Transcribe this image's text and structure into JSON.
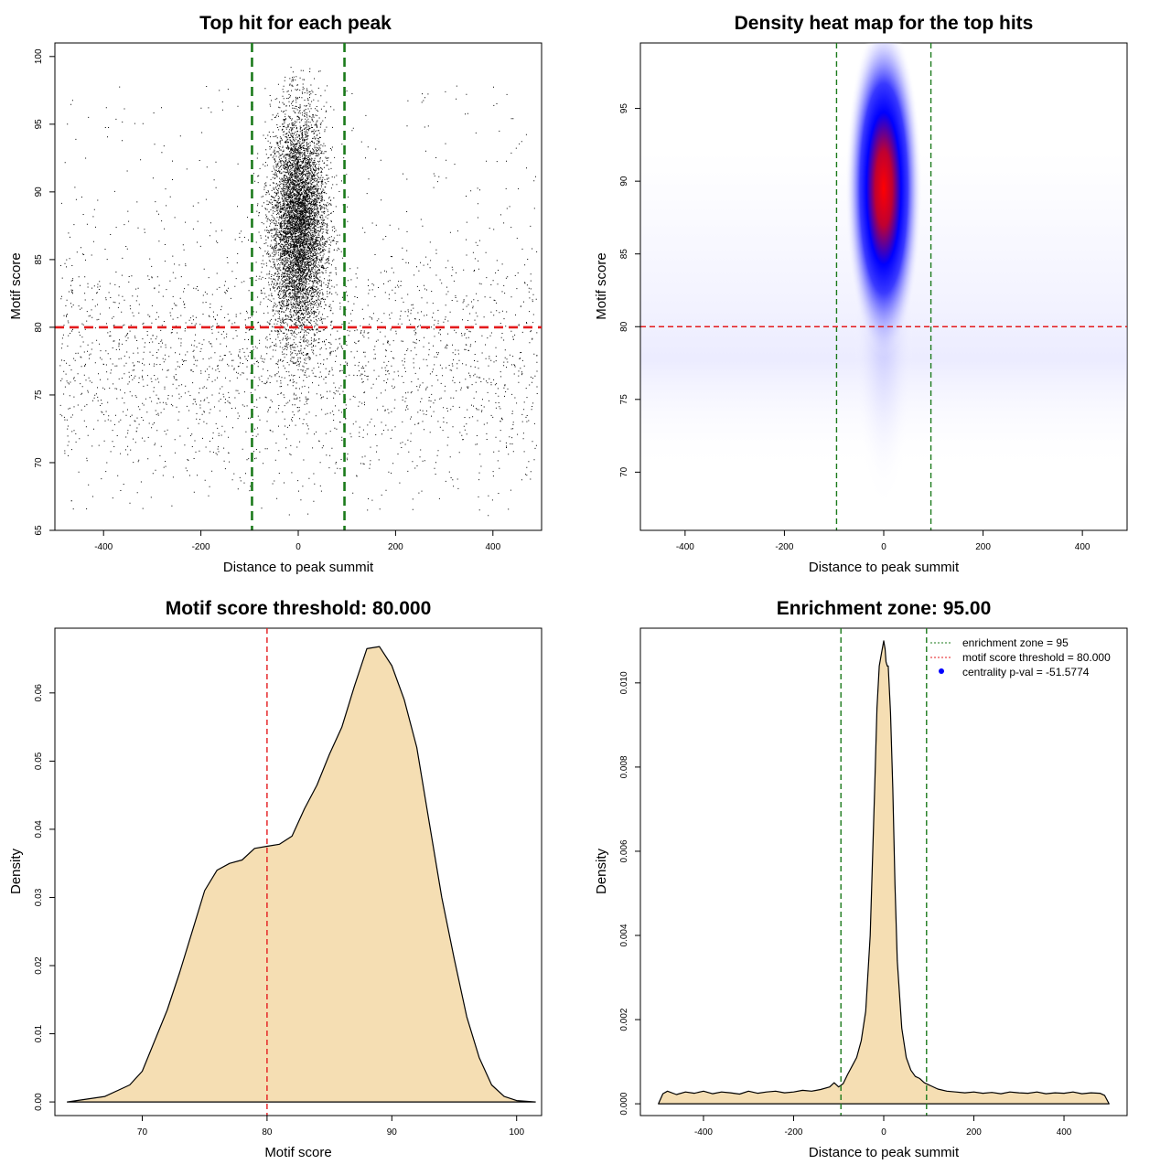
{
  "colors": {
    "threshold_line": "#e41a1c",
    "zone_line": "#1b7a1b",
    "density_fill": "#f5deb3",
    "point": "#000000",
    "heat_low": "#ffffff",
    "heat_mid": "#0000ff",
    "heat_high": "#ff0000",
    "legend_point": "#0000ff"
  },
  "chart_data": [
    {
      "id": "scatter",
      "type": "scatter",
      "title": "Top hit for each peak",
      "xlabel": "Distance to peak summit",
      "ylabel": "Motif score",
      "xlim": [
        -500,
        500
      ],
      "ylim": [
        65,
        101
      ],
      "xticks": [
        -400,
        -200,
        0,
        200,
        400
      ],
      "xtick_labels": [
        "-400",
        "-200",
        "0",
        "200",
        "400"
      ],
      "yticks": [
        65,
        70,
        75,
        80,
        85,
        90,
        95,
        100
      ],
      "ytick_labels": [
        "65",
        "70",
        "75",
        "80",
        "85",
        "90",
        "95",
        "100"
      ],
      "hlines": [
        80
      ],
      "vlines": [
        -95,
        95
      ],
      "central_cluster": {
        "center_x": 0,
        "sd_x": 28,
        "center_y": 87.5,
        "sd_y": 4.2,
        "y_max": 99.3
      },
      "background": {
        "x_range": [
          -490,
          490
        ],
        "y_center": 77,
        "sd_y": 4.5
      }
    },
    {
      "id": "heatmap",
      "type": "heatmap",
      "title": "Density heat map for the top hits",
      "xlabel": "Distance to peak summit",
      "ylabel": "Motif score",
      "xlim": [
        -490,
        490
      ],
      "ylim": [
        66,
        99.5
      ],
      "xticks": [
        -400,
        -200,
        0,
        200,
        400
      ],
      "xtick_labels": [
        "-400",
        "-200",
        "0",
        "200",
        "400"
      ],
      "yticks": [
        70,
        75,
        80,
        85,
        90,
        95
      ],
      "ytick_labels": [
        "70",
        "75",
        "80",
        "85",
        "90",
        "95"
      ],
      "hlines": [
        80
      ],
      "vlines": [
        -95,
        95
      ],
      "hotspot": {
        "x": 0,
        "y": 89
      }
    },
    {
      "id": "score_density",
      "type": "area",
      "title": "Motif score threshold: 80.000",
      "xlabel": "Motif score",
      "ylabel": "Density",
      "xlim": [
        63,
        102
      ],
      "ylim": [
        -0.002,
        0.0695
      ],
      "xticks": [
        70,
        80,
        90,
        100
      ],
      "xtick_labels": [
        "70",
        "80",
        "90",
        "100"
      ],
      "yticks": [
        0.0,
        0.01,
        0.02,
        0.03,
        0.04,
        0.05,
        0.06
      ],
      "ytick_labels": [
        "0.00",
        "0.01",
        "0.02",
        "0.03",
        "0.04",
        "0.05",
        "0.06"
      ],
      "vlines": [
        80
      ],
      "x": [
        64,
        67,
        69,
        70,
        72,
        73,
        74,
        75,
        76,
        77,
        78,
        79,
        80,
        81,
        82,
        83,
        84,
        85,
        86,
        87,
        88,
        89,
        90,
        91,
        92,
        93,
        94,
        95,
        96,
        97,
        98,
        99,
        100,
        101.5
      ],
      "y": [
        0.0,
        0.0008,
        0.0025,
        0.0045,
        0.0135,
        0.019,
        0.025,
        0.031,
        0.034,
        0.035,
        0.0355,
        0.0372,
        0.0375,
        0.0378,
        0.039,
        0.043,
        0.0465,
        0.051,
        0.055,
        0.061,
        0.0665,
        0.0668,
        0.064,
        0.059,
        0.052,
        0.041,
        0.03,
        0.021,
        0.0125,
        0.0065,
        0.0025,
        0.0008,
        0.0002,
        0.0
      ]
    },
    {
      "id": "distance_density",
      "type": "area",
      "title": "Enrichment zone: 95.00",
      "xlabel": "Distance to peak summit",
      "ylabel": "Density",
      "xlim": [
        -540,
        540
      ],
      "ylim": [
        -0.00028,
        0.0113
      ],
      "xticks": [
        -400,
        -200,
        0,
        200,
        400
      ],
      "xtick_labels": [
        "-400",
        "-200",
        "0",
        "200",
        "400"
      ],
      "yticks": [
        0.0,
        0.002,
        0.004,
        0.006,
        0.008,
        0.01
      ],
      "ytick_labels": [
        "0.000",
        "0.002",
        "0.004",
        "0.006",
        "0.008",
        "0.010"
      ],
      "vlines": [
        -95,
        95
      ],
      "x": [
        -500,
        -490,
        -480,
        -460,
        -440,
        -420,
        -400,
        -380,
        -360,
        -340,
        -320,
        -300,
        -280,
        -260,
        -240,
        -220,
        -200,
        -180,
        -160,
        -140,
        -120,
        -110,
        -100,
        -90,
        -80,
        -70,
        -60,
        -50,
        -40,
        -30,
        -20,
        -15,
        -10,
        -5,
        0,
        3,
        5,
        8,
        10,
        15,
        20,
        25,
        30,
        40,
        50,
        60,
        70,
        80,
        90,
        100,
        120,
        140,
        160,
        180,
        200,
        220,
        240,
        260,
        280,
        300,
        320,
        340,
        360,
        380,
        400,
        420,
        440,
        460,
        480,
        490,
        500
      ],
      "y": [
        0.0,
        0.00024,
        0.0003,
        0.00022,
        0.00028,
        0.00025,
        0.0003,
        0.00024,
        0.00028,
        0.00026,
        0.00023,
        0.0003,
        0.00025,
        0.00028,
        0.0003,
        0.00026,
        0.00028,
        0.00032,
        0.0003,
        0.00034,
        0.0004,
        0.0005,
        0.0004,
        0.00048,
        0.0007,
        0.0009,
        0.0011,
        0.0015,
        0.0022,
        0.004,
        0.0075,
        0.0094,
        0.0104,
        0.0107,
        0.011,
        0.0108,
        0.0105,
        0.0104,
        0.0104,
        0.0093,
        0.0075,
        0.0052,
        0.0034,
        0.0018,
        0.0011,
        0.0008,
        0.00065,
        0.0006,
        0.0005,
        0.00045,
        0.00035,
        0.0003,
        0.00028,
        0.00026,
        0.00028,
        0.00025,
        0.00027,
        0.00024,
        0.00028,
        0.00026,
        0.00025,
        0.00028,
        0.00024,
        0.00026,
        0.00025,
        0.00028,
        0.00024,
        0.00026,
        0.00025,
        0.0002,
        0.0
      ],
      "legend": {
        "position": "top-right",
        "entries": [
          {
            "label": "enrichment zone = 95",
            "marker": "dotted-line",
            "color_key": "zone_line"
          },
          {
            "label": "motif score threshold = 80.000",
            "marker": "dotted-line",
            "color_key": "threshold_line"
          },
          {
            "label": "centrality p-val = -51.5774",
            "marker": "point",
            "color_key": "legend_point"
          }
        ]
      }
    }
  ]
}
